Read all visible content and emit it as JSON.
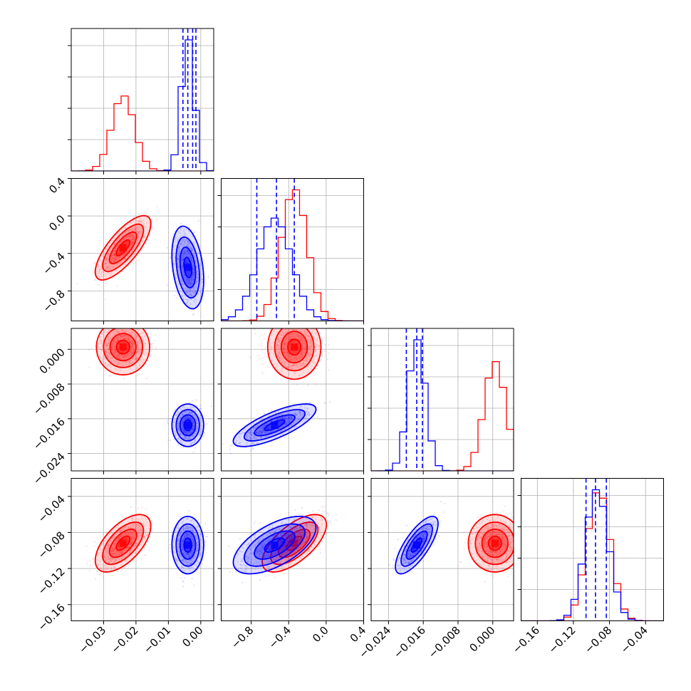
{
  "chart_data": {
    "type": "corner",
    "parameters": 4,
    "series": [
      {
        "color": "#ff0000",
        "mean": [
          -0.024,
          -0.34,
          0.0005,
          -0.092
        ],
        "std": [
          0.0035,
          0.14,
          0.0025,
          0.013
        ],
        "corr": [
          [
            1,
            0.75,
            0,
            0.6
          ],
          [
            0.75,
            1,
            0,
            0.65
          ],
          [
            0,
            0,
            1,
            0
          ],
          [
            0.6,
            0.65,
            0,
            1
          ]
        ],
        "quantile_lines": []
      },
      {
        "color": "#0000ff",
        "mean": [
          -0.004,
          -0.55,
          -0.0175,
          -0.094
        ],
        "std": [
          0.002,
          0.18,
          0.002,
          0.013
        ],
        "corr": [
          [
            1,
            -0.3,
            0,
            0
          ],
          [
            -0.3,
            1,
            0.75,
            0.6
          ],
          [
            0,
            0.75,
            1,
            0.75
          ],
          [
            0,
            0.6,
            0.75,
            1
          ]
        ],
        "quantile_lines": [
          [
            -0.0055,
            -0.004,
            -0.0025,
            -0.0015
          ],
          [
            -0.74,
            -0.53,
            -0.34
          ],
          [
            -0.0199,
            -0.0175,
            -0.0162
          ],
          [
            -0.106,
            -0.0955,
            -0.0835
          ]
        ]
      }
    ],
    "ranges": [
      [
        -0.04,
        0.004
      ],
      [
        -1.12,
        0.4
      ],
      [
        -0.028,
        0.0048
      ],
      [
        -0.178,
        -0.02
      ]
    ],
    "ticks": [
      [
        -0.03,
        -0.02,
        -0.01,
        0.0
      ],
      [
        -0.8,
        -0.4,
        0.0,
        0.4
      ],
      [
        -0.024,
        -0.016,
        -0.008,
        0.0
      ],
      [
        -0.16,
        -0.12,
        -0.08,
        -0.04
      ]
    ],
    "tick_labels": [
      [
        "−0.03",
        "−0.02",
        "−0.01",
        "0.00"
      ],
      [
        "−0.8",
        "−0.4",
        "0.0",
        "0.4"
      ],
      [
        "−0.024",
        "−0.016",
        "−0.008",
        "0.000"
      ],
      [
        "−0.16",
        "−0.12",
        "−0.08",
        "−0.04"
      ]
    ],
    "grid": true,
    "legend": "none",
    "title": "",
    "axis_labels": [
      "",
      "",
      "",
      ""
    ]
  }
}
